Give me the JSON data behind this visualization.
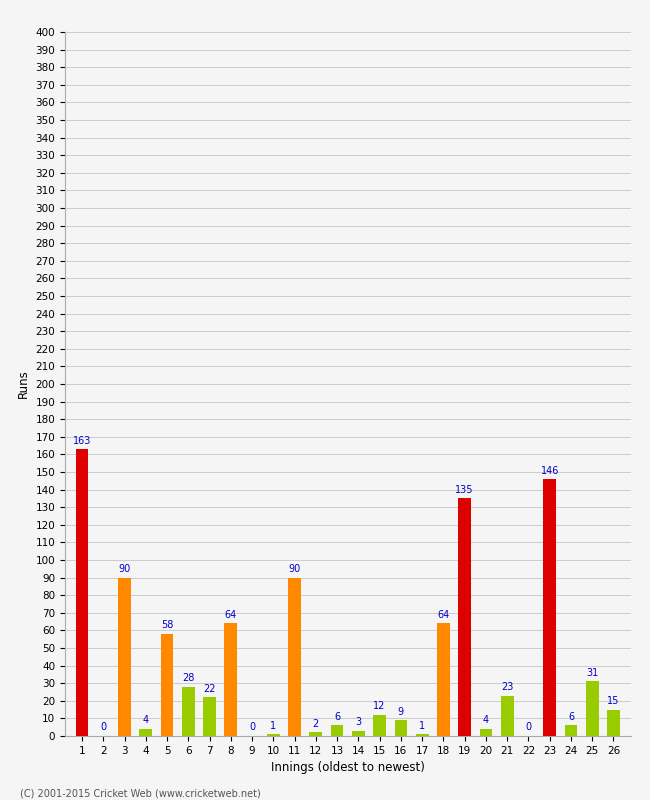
{
  "xlabel": "Innings (oldest to newest)",
  "ylabel": "Runs",
  "innings": [
    1,
    2,
    3,
    4,
    5,
    6,
    7,
    8,
    9,
    10,
    11,
    12,
    13,
    14,
    15,
    16,
    17,
    18,
    19,
    20,
    21,
    22,
    23,
    24,
    25,
    26
  ],
  "values": [
    163,
    0,
    90,
    4,
    58,
    28,
    22,
    64,
    0,
    1,
    90,
    2,
    6,
    3,
    12,
    9,
    1,
    64,
    135,
    4,
    23,
    0,
    146,
    6,
    31,
    15
  ],
  "colors": [
    "#dd0000",
    "#99cc00",
    "#ff8800",
    "#99cc00",
    "#ff8800",
    "#99cc00",
    "#99cc00",
    "#ff8800",
    "#99cc00",
    "#99cc00",
    "#ff8800",
    "#99cc00",
    "#99cc00",
    "#99cc00",
    "#99cc00",
    "#99cc00",
    "#99cc00",
    "#ff8800",
    "#dd0000",
    "#99cc00",
    "#99cc00",
    "#99cc00",
    "#dd0000",
    "#99cc00",
    "#99cc00",
    "#99cc00"
  ],
  "ylim": [
    0,
    400
  ],
  "yticks": [
    0,
    10,
    20,
    30,
    40,
    50,
    60,
    70,
    80,
    90,
    100,
    110,
    120,
    130,
    140,
    150,
    160,
    170,
    180,
    190,
    200,
    210,
    220,
    230,
    240,
    250,
    260,
    270,
    280,
    290,
    300,
    310,
    320,
    330,
    340,
    350,
    360,
    370,
    380,
    390,
    400
  ],
  "background_color": "#f5f5f5",
  "grid_color": "#cccccc",
  "label_color": "#0000cc",
  "footer": "(C) 2001-2015 Cricket Web (www.cricketweb.net)",
  "bar_width": 0.6,
  "xlim_left": 0.2,
  "xlim_right": 26.8
}
